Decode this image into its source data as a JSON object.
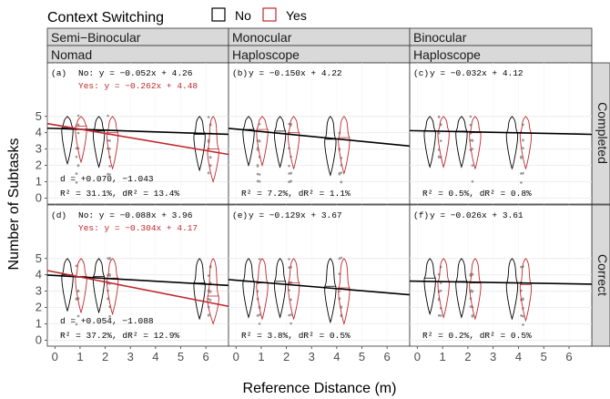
{
  "legend": {
    "title": "Context Switching",
    "items": [
      {
        "label": "No",
        "color": "#000000"
      },
      {
        "label": "Yes",
        "color": "#c0282d"
      }
    ]
  },
  "axes": {
    "xlabel": "Reference Distance (m)",
    "ylabel": "Number of Subtasks",
    "xticks": [
      "0",
      "1",
      "2",
      "3",
      "4",
      "5",
      "6"
    ],
    "yticks": [
      "0",
      "1",
      "2",
      "3",
      "4",
      "5"
    ]
  },
  "columns": [
    {
      "line1": "Semi−Binocular",
      "line2": "Nomad"
    },
    {
      "line1": "Monocular",
      "line2": "Haploscope"
    },
    {
      "line1": "Binocular",
      "line2": "Haploscope"
    }
  ],
  "rows": [
    "Completed",
    "Correct"
  ],
  "chart_data": {
    "type": "violin",
    "xlim": [
      -0.3,
      6.9
    ],
    "ylim": [
      -0.2,
      5.6
    ],
    "distances_nomad": [
      0.75,
      2,
      6
    ],
    "distances_haploscope": [
      0.75,
      2,
      4
    ],
    "panels": [
      {
        "label": "(a)",
        "row": "Completed",
        "col": 0,
        "eq_no": "No: y = −0.052x + 4.26",
        "eq_yes": "Yes: y = −0.262x + 4.48",
        "line_no": [
          -0.052,
          4.26
        ],
        "line_yes": [
          -0.262,
          4.48
        ],
        "stat1": "d = +0.070, −1.043",
        "stat2": "R² = 31.1%, dR² = 13.4%",
        "medians_no": [
          4.3,
          4.1,
          3.9
        ],
        "medians_yes": [
          4.4,
          4.0,
          3.0
        ]
      },
      {
        "label": "(b)",
        "row": "Completed",
        "col": 1,
        "eq_no": "y = −0.150x + 4.22",
        "eq_yes": "",
        "line_no": [
          -0.15,
          4.22
        ],
        "line_yes": null,
        "stat1": "",
        "stat2": "R² = 7.2%, dR² = 1.1%",
        "medians_no": [
          4.2,
          4.1,
          3.6
        ],
        "medians_yes": [
          4.2,
          4.0,
          3.7
        ]
      },
      {
        "label": "(c)",
        "row": "Completed",
        "col": 2,
        "eq_no": "y = −0.032x + 4.12",
        "eq_yes": "",
        "line_no": [
          -0.032,
          4.12
        ],
        "line_yes": null,
        "stat1": "",
        "stat2": "R² = 0.5%, dR² = 0.8%",
        "medians_no": [
          4.1,
          4.1,
          4.0
        ],
        "medians_yes": [
          4.1,
          4.0,
          4.0
        ]
      },
      {
        "label": "(d)",
        "row": "Correct",
        "col": 0,
        "eq_no": "No: y = −0.088x + 3.96",
        "eq_yes": "Yes: y = −0.304x + 4.17",
        "line_no": [
          -0.088,
          3.96
        ],
        "line_yes": [
          -0.304,
          4.17
        ],
        "stat1": "d = +0.054, −1.088",
        "stat2": "R² = 37.2%, dR² = 12.9%",
        "medians_no": [
          4.0,
          3.9,
          3.5
        ],
        "medians_yes": [
          3.9,
          3.8,
          2.7
        ]
      },
      {
        "label": "(e)",
        "row": "Correct",
        "col": 1,
        "eq_no": "y = −0.129x + 3.67",
        "eq_yes": "",
        "line_no": [
          -0.129,
          3.67
        ],
        "line_yes": null,
        "stat1": "",
        "stat2": "R² = 3.8%, dR² = 0.5%",
        "medians_no": [
          3.6,
          3.6,
          3.3
        ],
        "medians_yes": [
          3.5,
          3.5,
          3.2
        ]
      },
      {
        "label": "(f)",
        "row": "Correct",
        "col": 2,
        "eq_no": "y = −0.026x + 3.61",
        "eq_yes": "",
        "line_no": [
          -0.026,
          3.61
        ],
        "line_yes": null,
        "stat1": "",
        "stat2": "R² = 0.2%, dR² = 0.5%",
        "medians_no": [
          3.8,
          3.6,
          3.5
        ],
        "medians_yes": [
          3.6,
          3.5,
          3.4
        ]
      }
    ]
  }
}
